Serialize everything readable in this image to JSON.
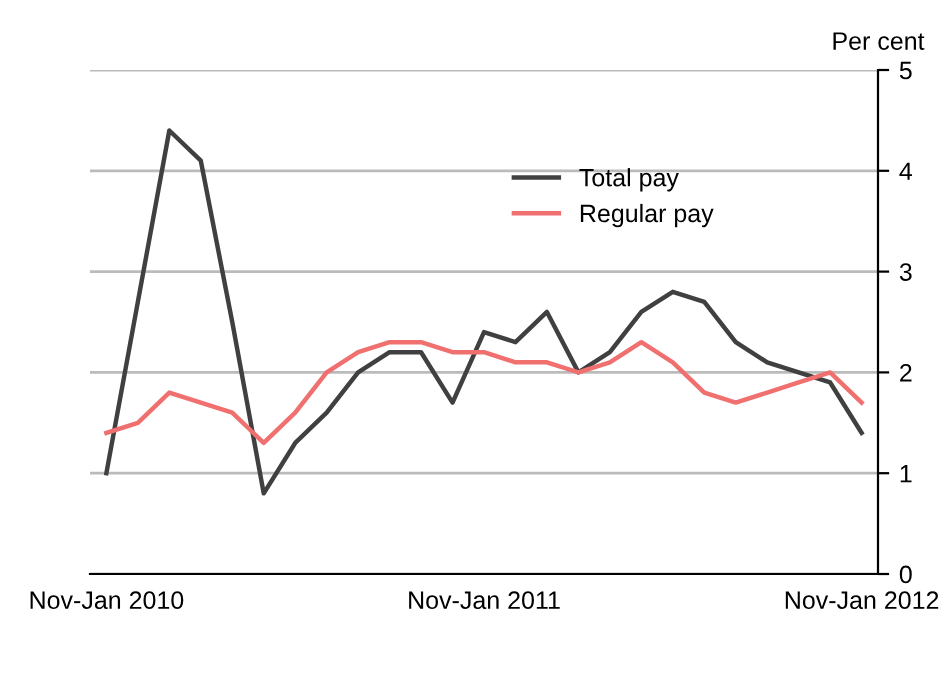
{
  "chart_data": {
    "type": "line",
    "ylabel": "Per cent",
    "categories": [
      "Nov-Jan 2010",
      null,
      null,
      null,
      null,
      null,
      null,
      null,
      null,
      null,
      null,
      null,
      "Nov-Jan 2011",
      null,
      null,
      null,
      null,
      null,
      null,
      null,
      null,
      null,
      null,
      null,
      "Nov-Jan 2012"
    ],
    "series": [
      {
        "name": "Total pay",
        "color": "#404040",
        "values": [
          1.0,
          2.7,
          4.4,
          4.1,
          2.5,
          0.8,
          1.3,
          1.6,
          2.0,
          2.2,
          2.2,
          1.7,
          2.4,
          2.3,
          2.6,
          2.0,
          2.2,
          2.6,
          2.8,
          2.7,
          2.3,
          2.1,
          2.0,
          1.9,
          1.4
        ]
      },
      {
        "name": "Regular pay",
        "color": "#f07070",
        "values": [
          1.4,
          1.5,
          1.8,
          1.7,
          1.6,
          1.3,
          1.6,
          2.0,
          2.2,
          2.3,
          2.3,
          2.2,
          2.2,
          2.1,
          2.1,
          2.0,
          2.1,
          2.3,
          2.1,
          1.8,
          1.7,
          1.8,
          1.9,
          2.0,
          1.7
        ]
      }
    ],
    "ylim": [
      0,
      5
    ],
    "yticks": [
      0,
      1,
      2,
      3,
      4,
      5
    ],
    "grid": "y",
    "legend": "top right",
    "marker": "none",
    "line_style": "solid"
  }
}
